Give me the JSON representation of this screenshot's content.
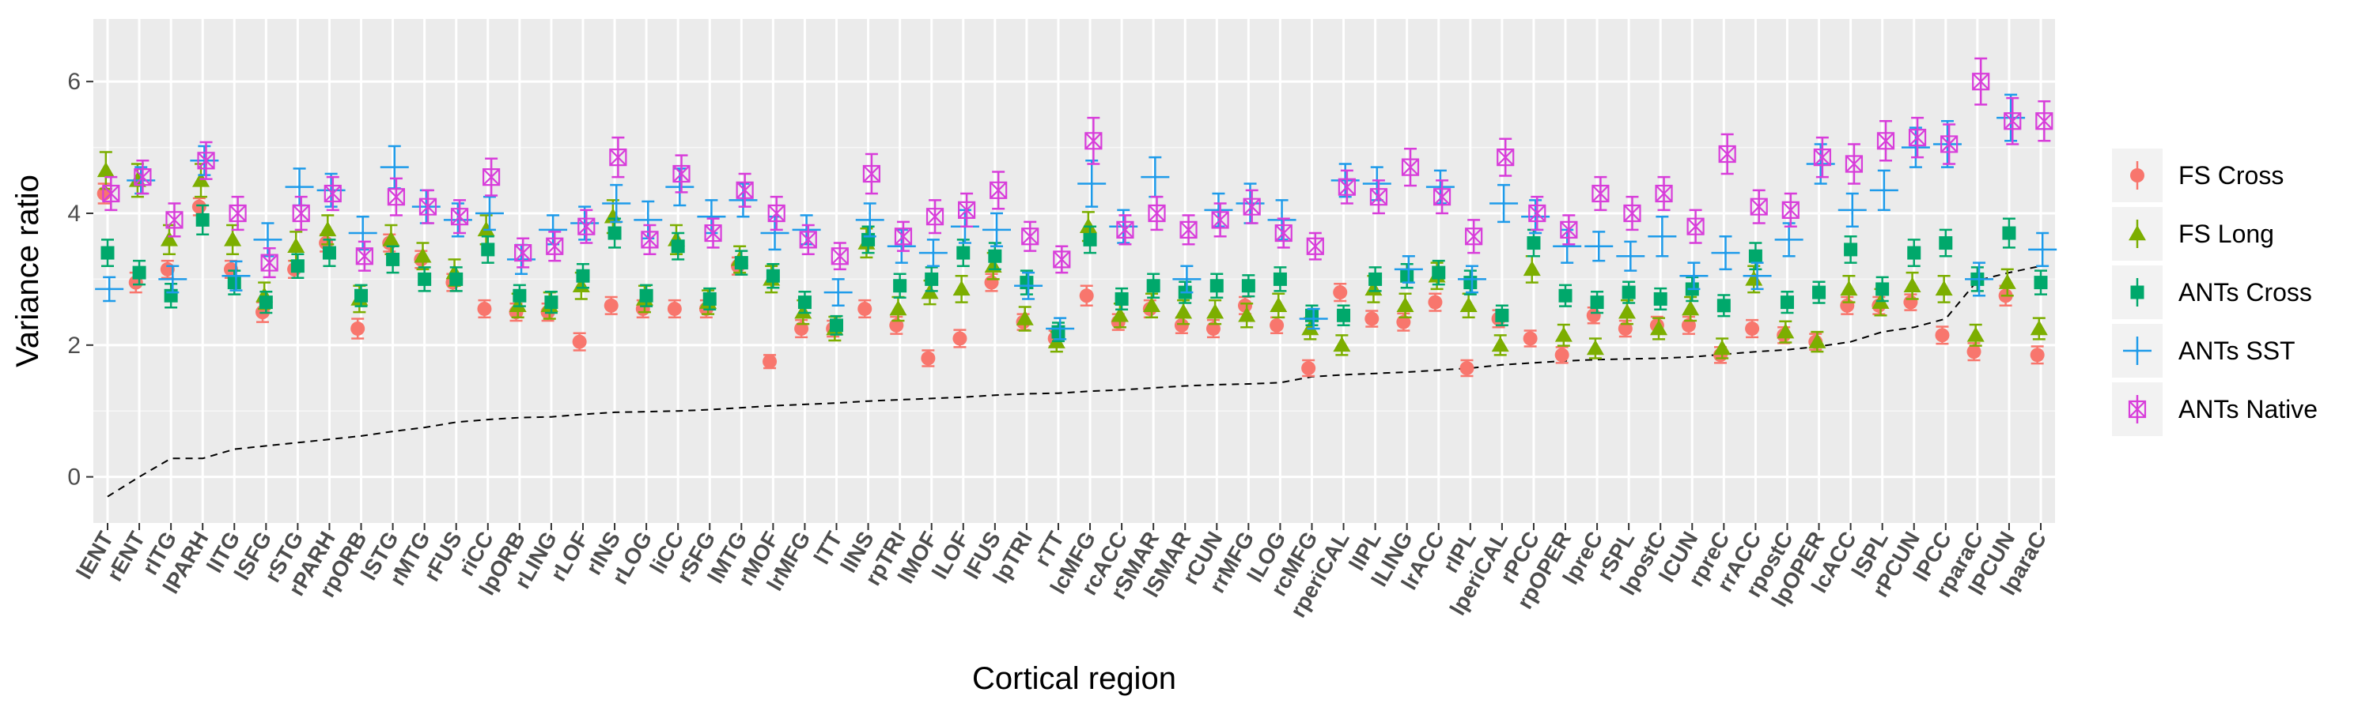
{
  "chart_data": {
    "type": "scatter",
    "xlabel": "Cortical region",
    "ylabel": "Variance ratio",
    "ylim": [
      -0.7,
      6.95
    ],
    "yticks": [
      0,
      2,
      4,
      6
    ],
    "grid": true,
    "legend_position": "right",
    "categories": [
      "lENT",
      "rENT",
      "rITG",
      "lPARH",
      "lITG",
      "lSFG",
      "rSTG",
      "rPARH",
      "rpORB",
      "lSTG",
      "rMTG",
      "rFUS",
      "riCC",
      "lpORB",
      "rLING",
      "rLOF",
      "rINS",
      "rLOG",
      "liCC",
      "rSFG",
      "lMTG",
      "rMOF",
      "lrMFG",
      "lTT",
      "lINS",
      "rpTRI",
      "lMOF",
      "lLOF",
      "lFUS",
      "lpTRI",
      "rTT",
      "lcMFG",
      "rcACC",
      "rSMAR",
      "lSMAR",
      "rCUN",
      "rrMFG",
      "lLOG",
      "rcMFG",
      "rperiCAL",
      "lIPL",
      "lLING",
      "lrACC",
      "rIPL",
      "lperiCAL",
      "rPCC",
      "rpOPER",
      "lpreC",
      "rSPL",
      "lpostC",
      "lCUN",
      "rpreC",
      "rrACC",
      "rpostC",
      "lpOPER",
      "lcACC",
      "lSPL",
      "rPCUN",
      "lPCC",
      "rparaC",
      "lPCUN",
      "lparaC"
    ],
    "reference_line": {
      "style": "dashed",
      "values": [
        -0.3,
        0.0,
        0.28,
        0.28,
        0.42,
        0.47,
        0.52,
        0.57,
        0.62,
        0.69,
        0.75,
        0.83,
        0.87,
        0.9,
        0.91,
        0.95,
        0.98,
        0.99,
        1.0,
        1.02,
        1.05,
        1.08,
        1.1,
        1.12,
        1.15,
        1.17,
        1.19,
        1.21,
        1.24,
        1.26,
        1.27,
        1.3,
        1.32,
        1.35,
        1.38,
        1.4,
        1.41,
        1.43,
        1.52,
        1.55,
        1.57,
        1.59,
        1.62,
        1.65,
        1.7,
        1.73,
        1.76,
        1.78,
        1.79,
        1.8,
        1.82,
        1.86,
        1.9,
        1.93,
        1.98,
        2.05,
        2.2,
        2.27,
        2.4,
        2.98,
        3.1,
        3.2
      ]
    },
    "series": [
      {
        "name": "FS Cross",
        "color": "#f8766d",
        "marker": "circle",
        "values": [
          4.3,
          2.95,
          3.15,
          4.1,
          3.15,
          2.5,
          3.15,
          3.55,
          2.25,
          3.55,
          3.3,
          2.95,
          2.55,
          2.5,
          2.5,
          2.05,
          2.6,
          2.55,
          2.55,
          2.55,
          3.2,
          1.75,
          2.25,
          2.25,
          2.55,
          2.3,
          1.8,
          2.1,
          2.95,
          2.35,
          2.1,
          2.75,
          2.35,
          2.55,
          2.3,
          2.25,
          2.6,
          2.3,
          1.65,
          2.8,
          2.4,
          2.35,
          2.65,
          1.65,
          2.4,
          2.1,
          1.85,
          2.45,
          2.25,
          2.3,
          2.3,
          1.85,
          2.25,
          2.15,
          2.05,
          2.6,
          2.6,
          2.65,
          2.15,
          1.9,
          2.75,
          1.85
        ],
        "errors": [
          0.15,
          0.15,
          0.13,
          0.13,
          0.13,
          0.15,
          0.13,
          0.13,
          0.15,
          0.13,
          0.13,
          0.13,
          0.13,
          0.13,
          0.13,
          0.13,
          0.13,
          0.13,
          0.13,
          0.13,
          0.13,
          0.1,
          0.13,
          0.12,
          0.13,
          0.13,
          0.12,
          0.13,
          0.13,
          0.12,
          0.12,
          0.15,
          0.12,
          0.13,
          0.12,
          0.13,
          0.13,
          0.12,
          0.12,
          0.13,
          0.12,
          0.13,
          0.13,
          0.12,
          0.13,
          0.12,
          0.12,
          0.12,
          0.12,
          0.13,
          0.13,
          0.12,
          0.13,
          0.12,
          0.12,
          0.13,
          0.13,
          0.12,
          0.13,
          0.13,
          0.15,
          0.13
        ]
      },
      {
        "name": "FS Long",
        "color": "#7cae00",
        "marker": "triangle",
        "values": [
          4.65,
          4.5,
          3.6,
          4.5,
          3.6,
          2.75,
          3.5,
          3.75,
          2.7,
          3.6,
          3.35,
          3.1,
          3.75,
          2.6,
          2.6,
          2.9,
          3.95,
          2.7,
          3.6,
          2.65,
          3.3,
          3.0,
          2.5,
          2.25,
          3.55,
          2.55,
          2.8,
          2.85,
          3.2,
          2.4,
          2.05,
          3.8,
          2.45,
          2.6,
          2.5,
          2.5,
          2.45,
          2.6,
          2.25,
          2.0,
          2.85,
          2.6,
          3.05,
          2.6,
          2.0,
          3.15,
          2.15,
          1.95,
          2.5,
          2.25,
          2.55,
          1.95,
          3.0,
          2.2,
          2.05,
          2.85,
          2.65,
          2.9,
          2.85,
          2.15,
          2.95,
          2.25
        ],
        "errors": [
          0.28,
          0.25,
          0.22,
          0.25,
          0.22,
          0.2,
          0.22,
          0.22,
          0.2,
          0.22,
          0.2,
          0.2,
          0.22,
          0.18,
          0.2,
          0.2,
          0.25,
          0.2,
          0.22,
          0.18,
          0.2,
          0.2,
          0.18,
          0.18,
          0.22,
          0.18,
          0.18,
          0.2,
          0.2,
          0.18,
          0.15,
          0.22,
          0.18,
          0.18,
          0.18,
          0.18,
          0.18,
          0.18,
          0.16,
          0.15,
          0.2,
          0.18,
          0.2,
          0.18,
          0.15,
          0.2,
          0.16,
          0.15,
          0.18,
          0.16,
          0.18,
          0.15,
          0.2,
          0.16,
          0.15,
          0.2,
          0.2,
          0.2,
          0.2,
          0.16,
          0.2,
          0.16
        ]
      },
      {
        "name": "ANTs Cross",
        "color": "#00a86b",
        "marker": "square",
        "values": [
          3.4,
          3.1,
          2.75,
          3.9,
          2.95,
          2.65,
          3.2,
          3.4,
          2.75,
          3.3,
          3.0,
          3.0,
          3.45,
          2.75,
          2.65,
          3.05,
          3.7,
          2.75,
          3.5,
          2.7,
          3.25,
          3.05,
          2.65,
          2.3,
          3.6,
          2.9,
          3.0,
          3.4,
          3.35,
          2.95,
          2.2,
          3.6,
          2.7,
          2.9,
          2.8,
          2.9,
          2.9,
          3.0,
          2.45,
          2.45,
          3.0,
          3.05,
          3.1,
          2.95,
          2.45,
          3.55,
          2.75,
          2.65,
          2.8,
          2.7,
          2.85,
          2.6,
          3.35,
          2.65,
          2.8,
          3.45,
          2.85,
          3.4,
          3.55,
          3.0,
          3.7,
          2.95
        ],
        "errors": [
          0.2,
          0.18,
          0.18,
          0.22,
          0.18,
          0.16,
          0.18,
          0.2,
          0.16,
          0.2,
          0.18,
          0.18,
          0.2,
          0.16,
          0.16,
          0.18,
          0.22,
          0.16,
          0.2,
          0.16,
          0.18,
          0.18,
          0.16,
          0.14,
          0.2,
          0.18,
          0.18,
          0.2,
          0.2,
          0.18,
          0.14,
          0.2,
          0.16,
          0.18,
          0.16,
          0.18,
          0.16,
          0.18,
          0.15,
          0.15,
          0.18,
          0.18,
          0.18,
          0.18,
          0.15,
          0.2,
          0.16,
          0.16,
          0.16,
          0.16,
          0.18,
          0.16,
          0.2,
          0.16,
          0.16,
          0.2,
          0.18,
          0.2,
          0.2,
          0.18,
          0.22,
          0.18
        ]
      },
      {
        "name": "ANTs SST",
        "color": "#1e9bea",
        "marker": "plus",
        "values": [
          2.85,
          4.5,
          3.0,
          4.8,
          3.05,
          3.6,
          4.4,
          4.35,
          3.7,
          4.7,
          4.1,
          3.9,
          4.0,
          3.3,
          3.75,
          3.85,
          4.15,
          3.9,
          4.4,
          3.95,
          4.2,
          3.7,
          3.75,
          2.8,
          3.9,
          3.5,
          3.4,
          3.8,
          3.75,
          2.9,
          2.25,
          4.45,
          3.8,
          4.55,
          3.0,
          4.05,
          4.15,
          3.9,
          2.4,
          4.5,
          4.45,
          3.15,
          4.4,
          3.0,
          4.15,
          3.95,
          3.5,
          3.5,
          3.35,
          3.65,
          3.05,
          3.4,
          3.05,
          3.6,
          4.75,
          4.05,
          4.35,
          5.0,
          5.05,
          3.0,
          5.45,
          3.45
        ],
        "errors": [
          0.18,
          0.2,
          0.2,
          0.22,
          0.22,
          0.25,
          0.28,
          0.25,
          0.25,
          0.32,
          0.25,
          0.25,
          0.25,
          0.22,
          0.22,
          0.25,
          0.28,
          0.28,
          0.28,
          0.25,
          0.25,
          0.25,
          0.22,
          0.2,
          0.25,
          0.25,
          0.2,
          0.25,
          0.25,
          0.2,
          0.16,
          0.35,
          0.25,
          0.3,
          0.2,
          0.25,
          0.3,
          0.3,
          0.15,
          0.25,
          0.25,
          0.2,
          0.25,
          0.2,
          0.28,
          0.25,
          0.25,
          0.22,
          0.22,
          0.3,
          0.2,
          0.25,
          0.2,
          0.25,
          0.3,
          0.25,
          0.3,
          0.3,
          0.35,
          0.25,
          0.35,
          0.25
        ]
      },
      {
        "name": "ANTs Native",
        "color": "#d83dda",
        "marker": "boxed-cross",
        "values": [
          4.3,
          4.55,
          3.9,
          4.8,
          4.0,
          3.25,
          4.0,
          4.3,
          3.35,
          4.25,
          4.1,
          3.95,
          4.55,
          3.4,
          3.5,
          3.8,
          4.85,
          3.6,
          4.6,
          3.7,
          4.35,
          4.0,
          3.6,
          3.35,
          4.6,
          3.65,
          3.95,
          4.05,
          4.35,
          3.65,
          3.3,
          5.1,
          3.75,
          4.0,
          3.75,
          3.9,
          4.1,
          3.7,
          3.5,
          4.4,
          4.25,
          4.7,
          4.25,
          3.65,
          4.85,
          4.0,
          3.75,
          4.3,
          4.0,
          4.3,
          3.8,
          4.9,
          4.1,
          4.05,
          4.85,
          4.75,
          5.1,
          5.15,
          5.05,
          6.0,
          5.4,
          5.4
        ],
        "errors": [
          0.25,
          0.25,
          0.25,
          0.28,
          0.25,
          0.22,
          0.25,
          0.25,
          0.22,
          0.28,
          0.25,
          0.25,
          0.28,
          0.22,
          0.22,
          0.25,
          0.3,
          0.22,
          0.28,
          0.22,
          0.25,
          0.25,
          0.22,
          0.2,
          0.3,
          0.22,
          0.25,
          0.25,
          0.28,
          0.22,
          0.2,
          0.35,
          0.22,
          0.25,
          0.22,
          0.25,
          0.25,
          0.22,
          0.2,
          0.25,
          0.25,
          0.28,
          0.25,
          0.25,
          0.28,
          0.25,
          0.22,
          0.25,
          0.25,
          0.25,
          0.25,
          0.3,
          0.25,
          0.25,
          0.3,
          0.3,
          0.3,
          0.3,
          0.3,
          0.35,
          0.35,
          0.3
        ]
      }
    ]
  }
}
